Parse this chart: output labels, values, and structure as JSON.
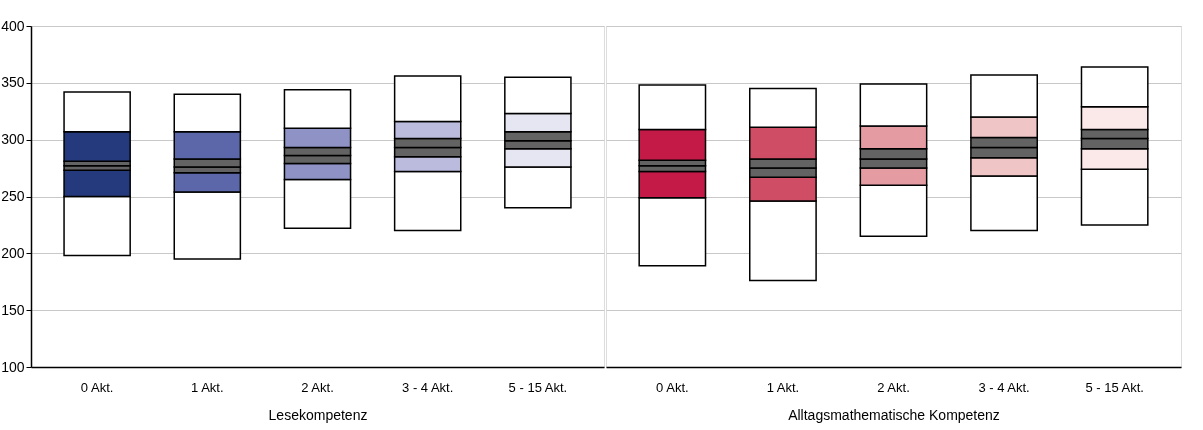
{
  "chart_data": [
    {
      "type": "bar",
      "xlabel": "Lesekompetenz",
      "categories": [
        "0 Akt.",
        "1 Akt.",
        "2 Akt.",
        "3 - 4 Akt.",
        "5 - 15 Akt."
      ],
      "series": [
        {
          "color": "#ffffff",
          "base": [
            198,
            195,
            222,
            220,
            240
          ],
          "values": [
            52,
            59,
            43,
            52,
            36
          ]
        },
        {
          "colors": [
            "#253a7c",
            "#5b67a8",
            "#8e92c5",
            "#bbbbde",
            "#e6e6f3"
          ],
          "base": [
            250,
            254,
            265,
            272,
            276
          ],
          "values": [
            23,
            17,
            14,
            13,
            16
          ]
        },
        {
          "color": "#636363",
          "base": [
            273,
            271,
            279,
            285,
            292
          ],
          "values": [
            4,
            5,
            7,
            8,
            7
          ]
        },
        {
          "color": "#636363",
          "base": [
            277,
            276,
            286,
            293,
            299
          ],
          "values": [
            4,
            7,
            7,
            8,
            8
          ]
        },
        {
          "colors": [
            "#253a7c",
            "#5b67a8",
            "#8e92c5",
            "#bbbbde",
            "#e6e6f3"
          ],
          "base": [
            281,
            283,
            293,
            301,
            307
          ],
          "values": [
            26,
            24,
            17,
            15,
            16
          ]
        },
        {
          "color": "#ffffff",
          "base": [
            307,
            307,
            310,
            316,
            323
          ],
          "values": [
            35,
            33,
            34,
            40,
            32
          ]
        }
      ],
      "ylim": [
        100,
        400
      ],
      "yticks": [
        100,
        150,
        200,
        250,
        300,
        350,
        400
      ],
      "grid": "y"
    },
    {
      "type": "bar",
      "xlabel": "Alltagsmathematische Kompetenz",
      "categories": [
        "0 Akt.",
        "1 Akt.",
        "2 Akt.",
        "3 - 4 Akt.",
        "5 - 15 Akt."
      ],
      "series": [
        {
          "color": "#ffffff",
          "base": [
            189,
            176,
            215,
            220,
            225
          ],
          "values": [
            60,
            70,
            45,
            48,
            49
          ]
        },
        {
          "colors": [
            "#c41a48",
            "#cf4e65",
            "#e59ba2",
            "#efc5c5",
            "#fbe8e9"
          ],
          "base": [
            249,
            246,
            260,
            268,
            274
          ],
          "values": [
            23,
            21,
            15,
            16,
            18
          ]
        },
        {
          "color": "#636363",
          "base": [
            272,
            267,
            275,
            284,
            292
          ],
          "values": [
            5,
            8,
            8,
            9,
            9
          ]
        },
        {
          "color": "#636363",
          "base": [
            277,
            275,
            283,
            293,
            301
          ],
          "values": [
            5,
            8,
            9,
            9,
            8
          ]
        },
        {
          "colors": [
            "#c41a48",
            "#cf4e65",
            "#e59ba2",
            "#efc5c5",
            "#fbe8e9"
          ],
          "base": [
            282,
            283,
            292,
            302,
            309
          ],
          "values": [
            27,
            28,
            20,
            18,
            20
          ]
        },
        {
          "color": "#ffffff",
          "base": [
            309,
            311,
            312,
            320,
            329
          ],
          "values": [
            39,
            34,
            37,
            37,
            35
          ]
        }
      ],
      "ylim": [
        100,
        400
      ],
      "yticks": [
        100,
        150,
        200,
        250,
        300,
        350,
        400
      ],
      "grid": "y",
      "tick_labels": "x"
    }
  ]
}
